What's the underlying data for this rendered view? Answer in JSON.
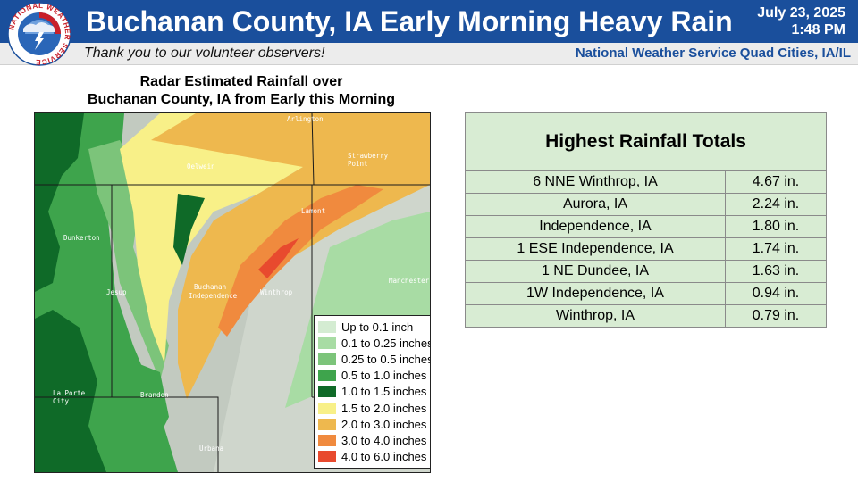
{
  "header": {
    "title": "Buchanan County, IA Early Morning Heavy Rain",
    "date": "July 23, 2025",
    "time": "1:48 PM",
    "logo_text": "NATIONAL WEATHER SERVICE"
  },
  "subheader": {
    "thanks": "Thank you to our volunteer observers!",
    "office": "National Weather Service Quad Cities, IA/IL"
  },
  "map": {
    "title_line1": "Radar Estimated Rainfall over",
    "title_line2": "Buchanan County, IA from Early this Morning",
    "places": {
      "arlington": "Arlington",
      "oelwein": "Oelwein",
      "strawberry1": "Strawberry",
      "strawberry2": "Point",
      "lamont": "Lamont",
      "dunkerton": "Dunkerton",
      "manchester": "Manchester",
      "jesup": "Jesup",
      "buchanan": "Buchanan",
      "independence": "Independence",
      "winthrop": "Winthrop",
      "laporte1": "La Porte",
      "laporte2": "City",
      "brandon": "Brandon",
      "urbana": "Urbana"
    },
    "legend": [
      {
        "label": "Up to 0.1 inch",
        "color": "#d4ecd2"
      },
      {
        "label": "0.1 to 0.25 inches",
        "color": "#a8dca4"
      },
      {
        "label": "0.25 to 0.5 inches",
        "color": "#7cc47a"
      },
      {
        "label": "0.5 to 1.0 inches",
        "color": "#3ea44c"
      },
      {
        "label": "1.0 to 1.5 inches",
        "color": "#0f6a28"
      },
      {
        "label": "1.5 to 2.0 inches",
        "color": "#f8f088"
      },
      {
        "label": "2.0 to 3.0 inches",
        "color": "#eeb84e"
      },
      {
        "label": "3.0 to 4.0 inches",
        "color": "#f08a3e"
      },
      {
        "label": "4.0 to 6.0 inches",
        "color": "#e84a2e"
      }
    ]
  },
  "rainfall_table": {
    "title": "Highest Rainfall Totals",
    "rows": [
      {
        "location": "6 NNE Winthrop, IA",
        "total": "4.67 in."
      },
      {
        "location": "Aurora, IA",
        "total": "2.24 in."
      },
      {
        "location": "Independence, IA",
        "total": "1.80 in."
      },
      {
        "location": "1 ESE Independence, IA",
        "total": "1.74 in."
      },
      {
        "location": "1 NE Dundee, IA",
        "total": "1.63 in."
      },
      {
        "location": "1W Independence, IA",
        "total": "0.94 in."
      },
      {
        "location": "Winthrop, IA",
        "total": "0.79 in."
      }
    ]
  }
}
